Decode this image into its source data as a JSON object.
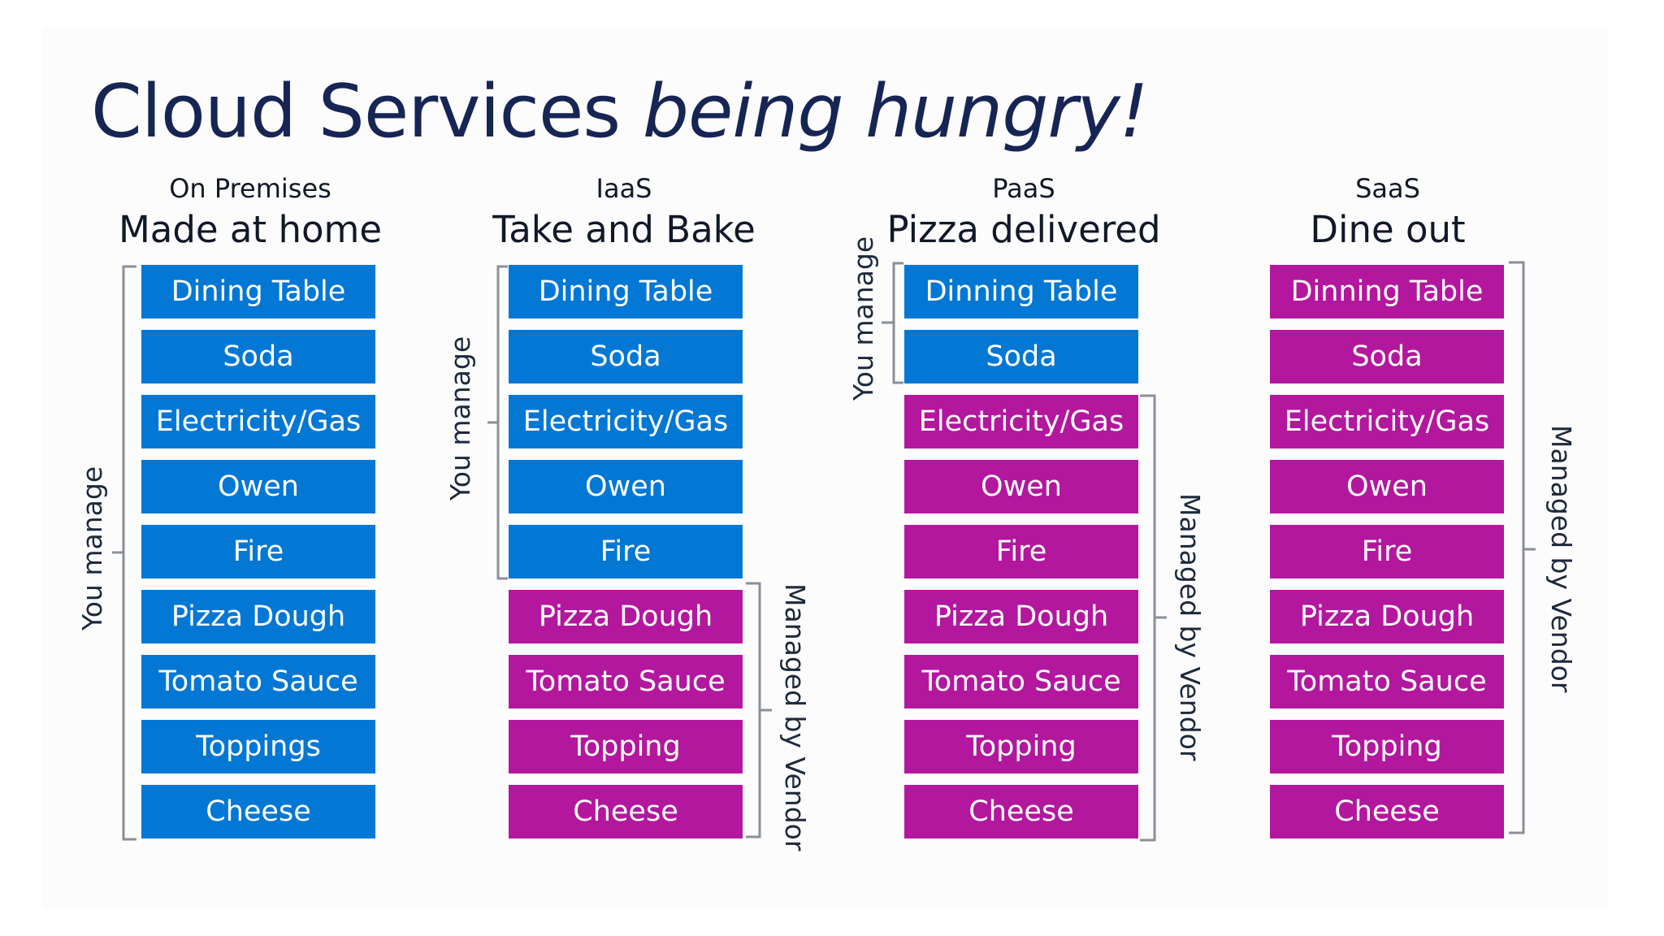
{
  "title_plain": "Cloud Services ",
  "title_italic": "being hungry!",
  "colors": {
    "you_manage": "#0277d4",
    "managed_by_vendor": "#b3179e"
  },
  "columns": [
    {
      "subtitle": "On Premises",
      "heading": "Made at home",
      "layers": [
        {
          "label": "Dining Table",
          "owner": "you"
        },
        {
          "label": "Soda",
          "owner": "you"
        },
        {
          "label": "Electricity/Gas",
          "owner": "you"
        },
        {
          "label": "Owen",
          "owner": "you"
        },
        {
          "label": "Fire",
          "owner": "you"
        },
        {
          "label": "Pizza Dough",
          "owner": "you"
        },
        {
          "label": "Tomato Sauce",
          "owner": "you"
        },
        {
          "label": "Toppings",
          "owner": "you"
        },
        {
          "label": "Cheese",
          "owner": "you"
        }
      ],
      "you_label": "You manage"
    },
    {
      "subtitle": "IaaS",
      "heading": "Take and Bake",
      "layers": [
        {
          "label": "Dining Table",
          "owner": "you"
        },
        {
          "label": "Soda",
          "owner": "you"
        },
        {
          "label": "Electricity/Gas",
          "owner": "you"
        },
        {
          "label": "Owen",
          "owner": "you"
        },
        {
          "label": "Fire",
          "owner": "you"
        },
        {
          "label": "Pizza Dough",
          "owner": "vendor"
        },
        {
          "label": "Tomato Sauce",
          "owner": "vendor"
        },
        {
          "label": "Topping",
          "owner": "vendor"
        },
        {
          "label": "Cheese",
          "owner": "vendor"
        }
      ],
      "you_label": "You manage",
      "vendor_label": "Managed by Vendor"
    },
    {
      "subtitle": "PaaS",
      "heading": "Pizza delivered",
      "layers": [
        {
          "label": "Dinning Table",
          "owner": "you"
        },
        {
          "label": "Soda",
          "owner": "you"
        },
        {
          "label": "Electricity/Gas",
          "owner": "vendor"
        },
        {
          "label": "Owen",
          "owner": "vendor"
        },
        {
          "label": "Fire",
          "owner": "vendor"
        },
        {
          "label": "Pizza Dough",
          "owner": "vendor"
        },
        {
          "label": "Tomato Sauce",
          "owner": "vendor"
        },
        {
          "label": "Topping",
          "owner": "vendor"
        },
        {
          "label": "Cheese",
          "owner": "vendor"
        }
      ],
      "you_label": "You manage",
      "vendor_label": "Managed by Vendor"
    },
    {
      "subtitle": "SaaS",
      "heading": "Dine out",
      "layers": [
        {
          "label": "Dinning Table",
          "owner": "vendor"
        },
        {
          "label": "Soda",
          "owner": "vendor"
        },
        {
          "label": "Electricity/Gas",
          "owner": "vendor"
        },
        {
          "label": "Owen",
          "owner": "vendor"
        },
        {
          "label": "Fire",
          "owner": "vendor"
        },
        {
          "label": "Pizza Dough",
          "owner": "vendor"
        },
        {
          "label": "Tomato Sauce",
          "owner": "vendor"
        },
        {
          "label": "Topping",
          "owner": "vendor"
        },
        {
          "label": "Cheese",
          "owner": "vendor"
        }
      ],
      "vendor_label": "Managed by Vendor"
    }
  ]
}
